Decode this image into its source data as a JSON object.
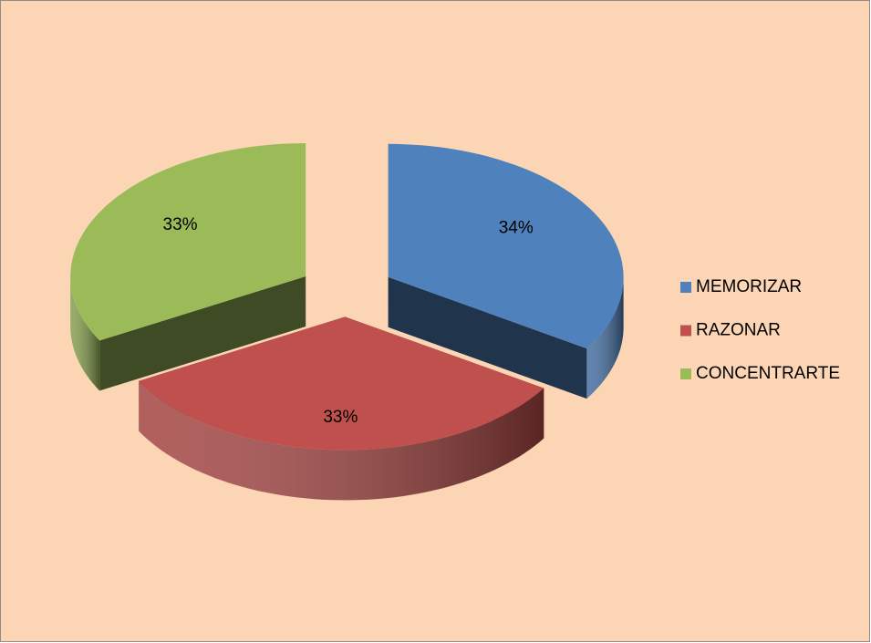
{
  "chart_data": {
    "type": "pie",
    "categories": [
      "MEMORIZAR",
      "RAZONAR",
      "CONCENTRARTE"
    ],
    "values": [
      34,
      33,
      33
    ],
    "value_labels": [
      "34%",
      "33%",
      "33%"
    ],
    "colors": [
      "#4f81bd",
      "#c0504d",
      "#9bbb59"
    ],
    "legend": "right"
  }
}
